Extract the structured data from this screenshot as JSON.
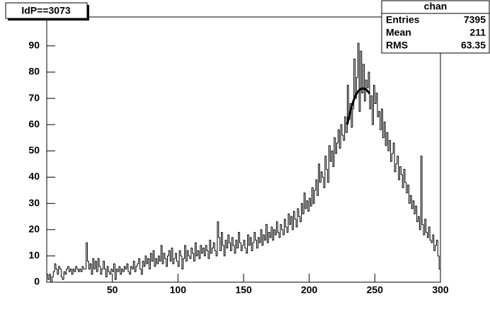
{
  "chart_data": {
    "type": "histogram",
    "title": "IdP==3073",
    "bins": [
      0,
      1,
      2,
      3,
      4,
      5,
      6,
      7,
      8,
      9,
      10,
      11,
      12,
      13,
      14,
      15,
      16,
      17,
      18,
      19,
      20,
      21,
      22,
      23,
      24,
      25,
      26,
      27,
      28,
      29,
      30,
      31,
      32,
      33,
      34,
      35,
      36,
      37,
      38,
      39,
      40,
      41,
      42,
      43,
      44,
      45,
      46,
      47,
      48,
      49,
      50,
      51,
      52,
      53,
      54,
      55,
      56,
      57,
      58,
      59,
      60,
      61,
      62,
      63,
      64,
      65,
      66,
      67,
      68,
      69,
      70,
      71,
      72,
      73,
      74,
      75,
      76,
      77,
      78,
      79,
      80,
      81,
      82,
      83,
      84,
      85,
      86,
      87,
      88,
      89,
      90,
      91,
      92,
      93,
      94,
      95,
      96,
      97,
      98,
      99,
      100,
      101,
      102,
      103,
      104,
      105,
      106,
      107,
      108,
      109,
      110,
      111,
      112,
      113,
      114,
      115,
      116,
      117,
      118,
      119,
      120,
      121,
      122,
      123,
      124,
      125,
      126,
      127,
      128,
      129,
      130,
      131,
      132,
      133,
      134,
      135,
      136,
      137,
      138,
      139,
      140,
      141,
      142,
      143,
      144,
      145,
      146,
      147,
      148,
      149,
      150,
      151,
      152,
      153,
      154,
      155,
      156,
      157,
      158,
      159,
      160,
      161,
      162,
      163,
      164,
      165,
      166,
      167,
      168,
      169,
      170,
      171,
      172,
      173,
      174,
      175,
      176,
      177,
      178,
      179,
      180,
      181,
      182,
      183,
      184,
      185,
      186,
      187,
      188,
      189,
      190,
      191,
      192,
      193,
      194,
      195,
      196,
      197,
      198,
      199,
      200,
      201,
      202,
      203,
      204,
      205,
      206,
      207,
      208,
      209,
      210,
      211,
      212,
      213,
      214,
      215,
      216,
      217,
      218,
      219,
      220,
      221,
      222,
      223,
      224,
      225,
      226,
      227,
      228,
      229,
      230,
      231,
      232,
      233,
      234,
      235,
      236,
      237,
      238,
      239,
      240,
      241,
      242,
      243,
      244,
      245,
      246,
      247,
      248,
      249,
      250,
      251,
      252,
      253,
      254,
      255,
      256,
      257,
      258,
      259,
      260,
      261,
      262,
      263,
      264,
      265,
      266,
      267,
      268,
      269,
      270,
      271,
      272,
      273,
      274,
      275,
      276,
      277,
      278,
      279,
      280,
      281,
      282,
      283,
      284,
      285,
      286,
      287,
      288,
      289,
      290,
      291,
      292,
      293,
      294,
      295,
      296,
      297,
      298,
      299,
      300
    ],
    "values": [
      3,
      1,
      3,
      0,
      2,
      4,
      7,
      5,
      3,
      6,
      5,
      2,
      1,
      4,
      3,
      5,
      6,
      4,
      5,
      3,
      5,
      4,
      6,
      5,
      4,
      5,
      4,
      6,
      5,
      5,
      15,
      8,
      5,
      7,
      3,
      9,
      5,
      8,
      4,
      9,
      6,
      3,
      5,
      8,
      5,
      2,
      6,
      4,
      3,
      5,
      4,
      7,
      1,
      5,
      4,
      6,
      3,
      5,
      4,
      6,
      5,
      7,
      4,
      3,
      6,
      5,
      8,
      4,
      6,
      7,
      9,
      5,
      3,
      8,
      6,
      10,
      7,
      9,
      5,
      11,
      8,
      12,
      6,
      9,
      7,
      10,
      8,
      14,
      7,
      11,
      9,
      6,
      10,
      12,
      8,
      13,
      7,
      9,
      11,
      8,
      6,
      12,
      10,
      5,
      9,
      14,
      8,
      12,
      10,
      9,
      13,
      11,
      8,
      15,
      10,
      12,
      9,
      14,
      11,
      13,
      10,
      14,
      12,
      9,
      16,
      11,
      13,
      15,
      12,
      10,
      23,
      17,
      12,
      19,
      14,
      10,
      16,
      13,
      18,
      15,
      12,
      17,
      14,
      11,
      16,
      13,
      19,
      15,
      12,
      14,
      16,
      13,
      11,
      18,
      14,
      17,
      12,
      15,
      19,
      16,
      13,
      17,
      15,
      20,
      14,
      18,
      16,
      22,
      15,
      19,
      17,
      21,
      16,
      20,
      18,
      23,
      19,
      17,
      22,
      20,
      18,
      24,
      21,
      19,
      26,
      22,
      25,
      20,
      27,
      24,
      21,
      28,
      25,
      23,
      30,
      26,
      34,
      28,
      31,
      27,
      32,
      29,
      36,
      30,
      35,
      39,
      33,
      45,
      38,
      42,
      40,
      36,
      48,
      43,
      38,
      52,
      46,
      50,
      44,
      55,
      49,
      53,
      58,
      51,
      60,
      56,
      54,
      63,
      57,
      75,
      62,
      68,
      59,
      66,
      85,
      70,
      78,
      91,
      65,
      88,
      72,
      83,
      69,
      77,
      74,
      80,
      66,
      71,
      60,
      75,
      68,
      72,
      63,
      65,
      58,
      66,
      55,
      61,
      52,
      57,
      50,
      54,
      46,
      49,
      53,
      42,
      45,
      48,
      39,
      44,
      41,
      36,
      43,
      38,
      34,
      37,
      30,
      33,
      28,
      31,
      26,
      29,
      23,
      25,
      20,
      48,
      22,
      18,
      24,
      19,
      17,
      21,
      16,
      15,
      18,
      12,
      14,
      16,
      10,
      5
    ],
    "color": "#000000",
    "fit": {
      "x": [
        229,
        231,
        233,
        235,
        237,
        239,
        241,
        243,
        245,
        246
      ],
      "values": [
        60,
        64.5,
        68,
        70.8,
        72.5,
        73.5,
        73.8,
        73.5,
        72.5,
        71.8
      ],
      "color": "#000000"
    },
    "xlim": [
      0,
      300
    ],
    "xticks": [
      50,
      100,
      150,
      200,
      250,
      300
    ],
    "ylim": [
      0,
      101
    ],
    "yticks": [
      0,
      10,
      20,
      30,
      40,
      50,
      60,
      70,
      80,
      90
    ],
    "stats": {
      "title": "chan",
      "rows": [
        {
          "label": "Entries",
          "value": "7395"
        },
        {
          "label": "Mean",
          "value": "211"
        },
        {
          "label": "RMS",
          "value": "63.35"
        }
      ]
    }
  }
}
